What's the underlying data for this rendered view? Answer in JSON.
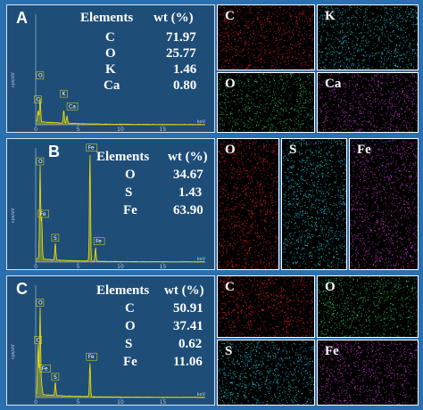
{
  "panels": [
    {
      "id": "A",
      "header": {
        "elements": "Elements",
        "wt": "wt (%)"
      },
      "rows": [
        {
          "el": "C",
          "wt": "71.97"
        },
        {
          "el": "O",
          "wt": "25.77"
        },
        {
          "el": "K",
          "wt": "1.46"
        },
        {
          "el": "Ca",
          "wt": "0.80"
        }
      ],
      "peaks": [
        "C",
        "O",
        "K",
        "Ca"
      ],
      "maps": [
        {
          "label": "C",
          "color": "#e0222a"
        },
        {
          "label": "K",
          "color": "#28c8d8"
        },
        {
          "label": "O",
          "color": "#2fbf5a"
        },
        {
          "label": "Ca",
          "color": "#c43cc4"
        }
      ]
    },
    {
      "id": "B",
      "header": {
        "elements": "Elements",
        "wt": "wt (%)"
      },
      "rows": [
        {
          "el": "O",
          "wt": "34.67"
        },
        {
          "el": "S",
          "wt": "1.43"
        },
        {
          "el": "Fe",
          "wt": "63.90"
        }
      ],
      "peaks": [
        "O",
        "Fe",
        "S",
        "Fe",
        "Fe"
      ],
      "maps": [
        {
          "label": "O",
          "color": "#e0222a"
        },
        {
          "label": "S",
          "color": "#28c8d8"
        },
        {
          "label": "Fe",
          "color": "#c43cc4"
        }
      ]
    },
    {
      "id": "C",
      "header": {
        "elements": "Elements",
        "wt": "wt (%)"
      },
      "rows": [
        {
          "el": "C",
          "wt": "50.91"
        },
        {
          "el": "O",
          "wt": "37.41"
        },
        {
          "el": "S",
          "wt": "0.62"
        },
        {
          "el": "Fe",
          "wt": "11.06"
        }
      ],
      "peaks": [
        "C",
        "O",
        "Fe",
        "S",
        "Fe"
      ],
      "maps": [
        {
          "label": "C",
          "color": "#e0222a"
        },
        {
          "label": "O",
          "color": "#2fbf5a"
        },
        {
          "label": "S",
          "color": "#28c8d8"
        },
        {
          "label": "Fe",
          "color": "#c43cc4"
        }
      ]
    }
  ],
  "axis": {
    "ticks": [
      "0",
      "5",
      "10",
      "15"
    ],
    "unit": "keV",
    "ylabel": "cps/eV"
  }
}
